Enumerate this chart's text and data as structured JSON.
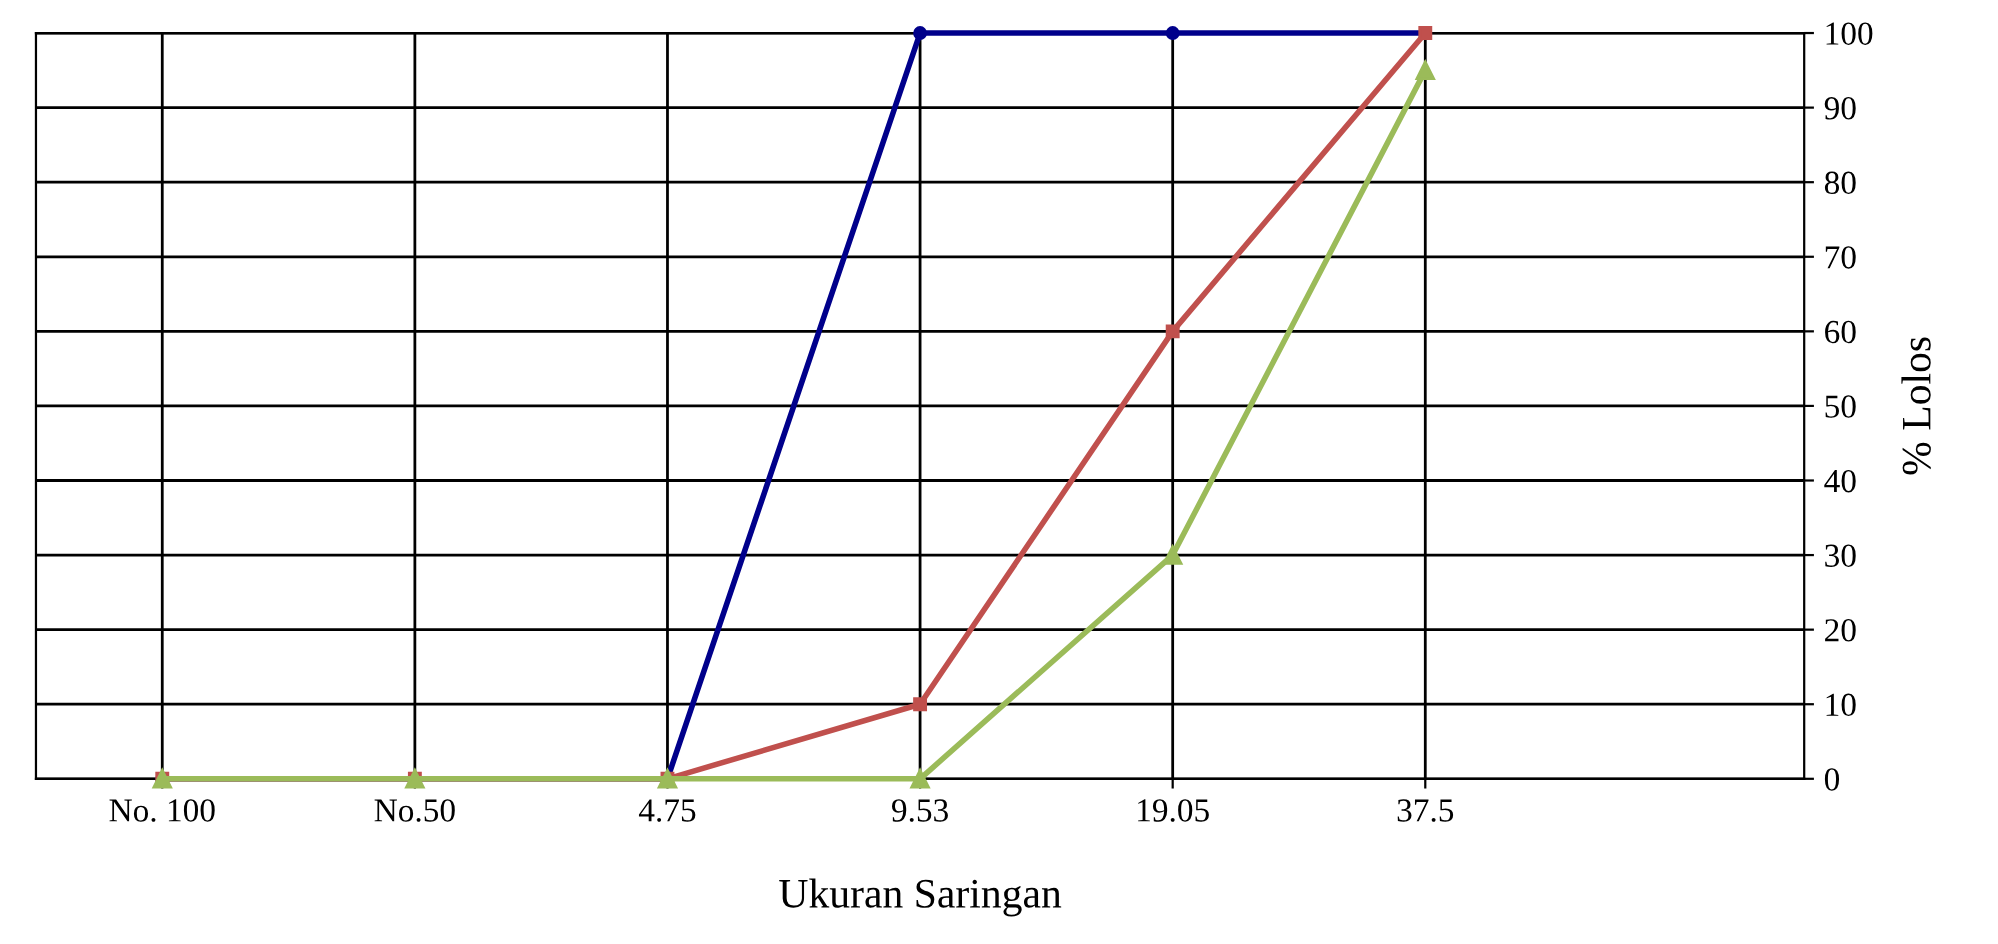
{
  "chart_data": {
    "type": "line",
    "xlabel": "Ukuran Saringan",
    "ylabel": "% Lolos",
    "categories": [
      "No. 100",
      "No.50",
      "4.75",
      "9.53",
      "19.05",
      "37.5"
    ],
    "series": [
      {
        "color": "#00008b",
        "marker": "circle",
        "values": [
          0,
          0,
          0,
          100,
          100,
          100
        ]
      },
      {
        "color": "#c0504d",
        "marker": "square",
        "values": [
          0,
          0,
          0,
          10,
          60,
          100
        ]
      },
      {
        "color": "#9bbb59",
        "marker": "triangle",
        "values": [
          0,
          0,
          0,
          0,
          30,
          95
        ]
      }
    ],
    "ylim": [
      0,
      100
    ],
    "yticks": [
      0,
      10,
      20,
      30,
      40,
      50,
      60,
      70,
      80,
      90,
      100
    ],
    "grid": true,
    "line_style": "solid"
  }
}
